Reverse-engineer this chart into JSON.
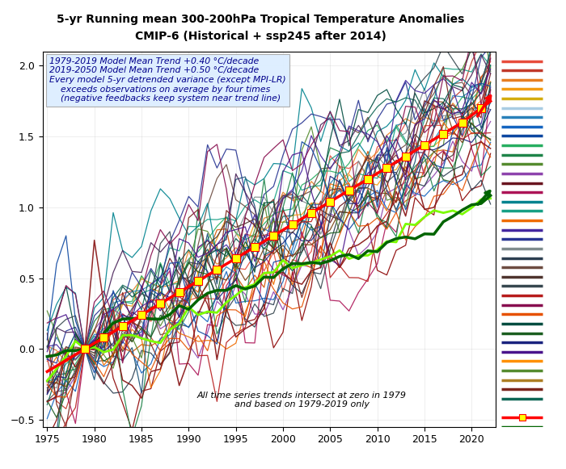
{
  "title_line1": "5-yr Running mean 300-200hPa Tropical Temperature Anomalies",
  "title_line2": "CMIP-6 (Historical + ssp245 after 2014)",
  "xlim": [
    1974.5,
    2022.5
  ],
  "ylim": [
    -0.55,
    2.1
  ],
  "xticks": [
    1975,
    1980,
    1985,
    1990,
    1995,
    2000,
    2005,
    2010,
    2015,
    2020
  ],
  "yticks": [
    -0.5,
    0.0,
    0.5,
    1.0,
    1.5,
    2.0
  ],
  "annotation_text": "All time series trends intersect at zero in 1979\nand based on 1979-2019 only",
  "info_text": "1979-2019 Model Mean Trend +0.40 °C/decade\n2019-2050 Model Mean Trend +0.50 °C/decade\nEvery model 5-yr detrended variance (except MPI-LR)\n    exceeds observations on average by four times\n    (negative feedbacks keep system near trend line)",
  "trend_rate_hist": 0.04,
  "trend_rate_fut": 0.05,
  "obs_rate": 0.022,
  "model_colors": [
    "#8B0000",
    "#c0392b",
    "#e74c3c",
    "#e67e22",
    "#d35400",
    "#f39c12",
    "#27ae60",
    "#2980b9",
    "#8e44ad",
    "#16a085",
    "#2c3e50",
    "#7f8c8d",
    "#6D4C41",
    "#1565C0",
    "#558B2F",
    "#AD1457",
    "#00838F",
    "#EF6C00",
    "#4527A0",
    "#283593",
    "#6a1520",
    "#1a5276",
    "#1e8449",
    "#784212",
    "#4a235a",
    "#0e6655",
    "#7b241c",
    "#1a237e",
    "#004d40",
    "#4e342e",
    "#37474f",
    "#b71c1c",
    "#0d47a1",
    "#1b5e20",
    "#880e4f",
    "#e65100",
    "#4a148c"
  ],
  "sidebar_colors": [
    "#e74c3c",
    "#c0392b",
    "#e67e22",
    "#f39c12",
    "#d4ac0d",
    "#a9cce3",
    "#2980b9",
    "#1565C0",
    "#0d47a1",
    "#27ae60",
    "#1e8449",
    "#558B2F",
    "#8e44ad",
    "#6a1520",
    "#AD1457",
    "#00838F",
    "#16a085",
    "#EF6C00",
    "#4527A0",
    "#283593",
    "#7f8c8d",
    "#2c3e50",
    "#6D4C41",
    "#4e342e",
    "#37474f",
    "#b71c1c",
    "#880e4f",
    "#e65100",
    "#004d40",
    "#1b5e20",
    "#1a237e",
    "#4a148c",
    "#ff8f00",
    "#558B2F",
    "#ad7f24",
    "#7b241c",
    "#0e6655"
  ]
}
